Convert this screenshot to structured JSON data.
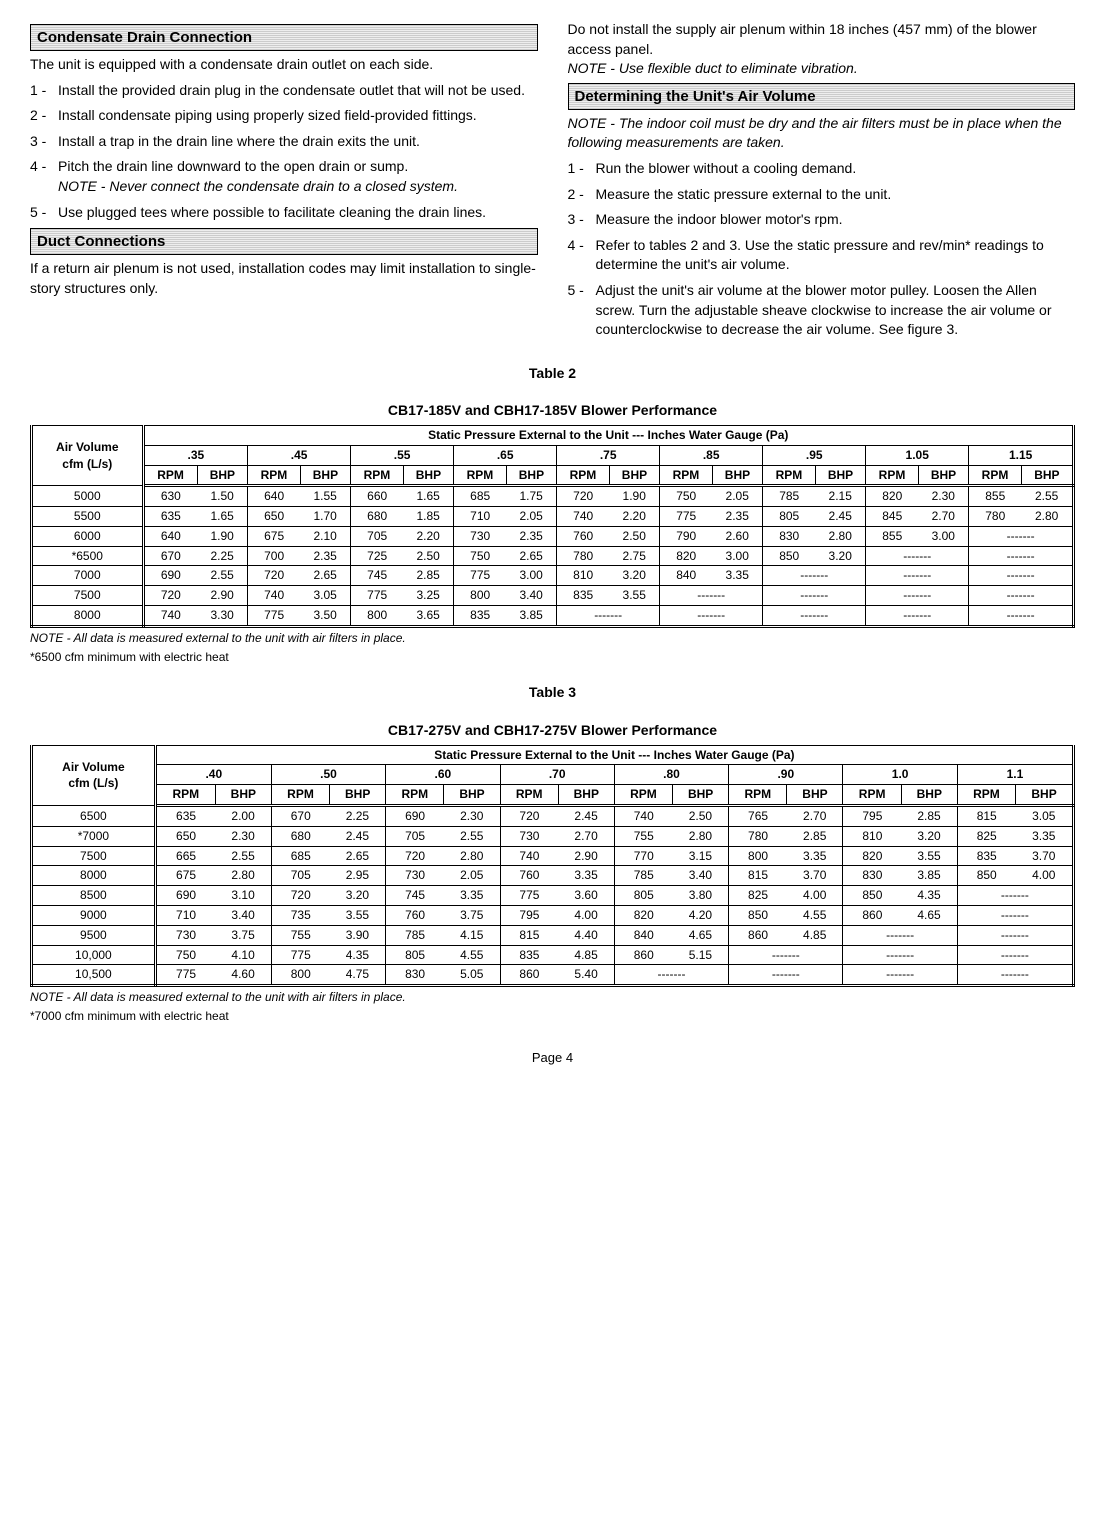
{
  "left": {
    "sec1_title": "Condensate Drain Connection",
    "sec1_intro": "The unit is equipped with a condensate drain outlet on each side.",
    "sec1_items": [
      "Install the provided drain plug in the condensate outlet that will not be used.",
      "Install condensate piping using properly sized field-provided fittings.",
      "Install a trap in the drain line where the drain exits the unit.",
      "Pitch the drain line downward to the open drain or sump.",
      "Use plugged tees where possible to facilitate cleaning the drain lines."
    ],
    "sec1_note": "NOTE - Never connect the condensate drain to a closed system.",
    "sec2_title": "Duct Connections",
    "sec2_text": "If a return air plenum is not used, installation codes may limit installation to single-story structures only."
  },
  "right": {
    "para1": "Do not install the supply air plenum within 18 inches (457 mm) of the blower access panel.",
    "note1": "NOTE - Use flexible duct to eliminate vibration.",
    "sec_title": "Determining the Unit's Air Volume",
    "note2": "NOTE - The indoor coil must be dry and the air filters must be in place when the following measurements are taken.",
    "items": [
      "Run the blower without a cooling demand.",
      "Measure the static pressure external to the unit.",
      "Measure the indoor blower motor's rpm.",
      "Refer to tables 2 and 3. Use the static pressure and rev/min* readings to determine the unit's air volume.",
      "Adjust the unit's air volume at the blower motor pulley. Loosen the Allen screw. Turn the adjustable sheave clockwise to increase the air volume or counterclockwise to decrease the air volume. See figure 3."
    ]
  },
  "table2": {
    "title1": "Table 2",
    "title2": "CB17-185V and CBH17-185V Blower Performance",
    "rowhead": "Air Volume cfm (L/s)",
    "super": "Static Pressure External to the Unit --- Inches Water Gauge (Pa)",
    "cols": [
      ".35",
      ".45",
      ".55",
      ".65",
      ".75",
      ".85",
      ".95",
      "1.05",
      "1.15"
    ],
    "sub": [
      "RPM",
      "BHP"
    ],
    "rows": [
      {
        "h": "5000",
        "c": [
          [
            "630",
            "1.50"
          ],
          [
            "640",
            "1.55"
          ],
          [
            "660",
            "1.65"
          ],
          [
            "685",
            "1.75"
          ],
          [
            "720",
            "1.90"
          ],
          [
            "750",
            "2.05"
          ],
          [
            "785",
            "2.15"
          ],
          [
            "820",
            "2.30"
          ],
          [
            "855",
            "2.55"
          ]
        ]
      },
      {
        "h": "5500",
        "c": [
          [
            "635",
            "1.65"
          ],
          [
            "650",
            "1.70"
          ],
          [
            "680",
            "1.85"
          ],
          [
            "710",
            "2.05"
          ],
          [
            "740",
            "2.20"
          ],
          [
            "775",
            "2.35"
          ],
          [
            "805",
            "2.45"
          ],
          [
            "845",
            "2.70"
          ],
          [
            "780",
            "2.80"
          ]
        ]
      },
      {
        "h": "6000",
        "c": [
          [
            "640",
            "1.90"
          ],
          [
            "675",
            "2.10"
          ],
          [
            "705",
            "2.20"
          ],
          [
            "730",
            "2.35"
          ],
          [
            "760",
            "2.50"
          ],
          [
            "790",
            "2.60"
          ],
          [
            "830",
            "2.80"
          ],
          [
            "855",
            "3.00"
          ],
          [
            "---",
            "---"
          ]
        ]
      },
      {
        "h": "*6500",
        "c": [
          [
            "670",
            "2.25"
          ],
          [
            "700",
            "2.35"
          ],
          [
            "725",
            "2.50"
          ],
          [
            "750",
            "2.65"
          ],
          [
            "780",
            "2.75"
          ],
          [
            "820",
            "3.00"
          ],
          [
            "850",
            "3.20"
          ],
          [
            "---",
            "---"
          ],
          [
            "---",
            "---"
          ]
        ]
      },
      {
        "h": "7000",
        "c": [
          [
            "690",
            "2.55"
          ],
          [
            "720",
            "2.65"
          ],
          [
            "745",
            "2.85"
          ],
          [
            "775",
            "3.00"
          ],
          [
            "810",
            "3.20"
          ],
          [
            "840",
            "3.35"
          ],
          [
            "---",
            "---"
          ],
          [
            "---",
            "---"
          ],
          [
            "---",
            "---"
          ]
        ]
      },
      {
        "h": "7500",
        "c": [
          [
            "720",
            "2.90"
          ],
          [
            "740",
            "3.05"
          ],
          [
            "775",
            "3.25"
          ],
          [
            "800",
            "3.40"
          ],
          [
            "835",
            "3.55"
          ],
          [
            "---",
            "---"
          ],
          [
            "---",
            "---"
          ],
          [
            "---",
            "---"
          ],
          [
            "---",
            "---"
          ]
        ]
      },
      {
        "h": "8000",
        "c": [
          [
            "740",
            "3.30"
          ],
          [
            "775",
            "3.50"
          ],
          [
            "800",
            "3.65"
          ],
          [
            "835",
            "3.85"
          ],
          [
            "---",
            "---"
          ],
          [
            "---",
            "---"
          ],
          [
            "---",
            "---"
          ],
          [
            "---",
            "---"
          ],
          [
            "---",
            "---"
          ]
        ]
      }
    ],
    "foot1": "NOTE - All data is measured external to the unit with air filters in place.",
    "foot2": "*6500 cfm minimum with electric heat"
  },
  "table3": {
    "title1": "Table 3",
    "title2": "CB17-275V and CBH17-275V Blower Performance",
    "rowhead": "Air Volume cfm (L/s)",
    "super": "Static Pressure External to the Unit --- Inches Water Gauge (Pa)",
    "cols": [
      ".40",
      ".50",
      ".60",
      ".70",
      ".80",
      ".90",
      "1.0",
      "1.1"
    ],
    "sub": [
      "RPM",
      "BHP"
    ],
    "rows": [
      {
        "h": "6500",
        "c": [
          [
            "635",
            "2.00"
          ],
          [
            "670",
            "2.25"
          ],
          [
            "690",
            "2.30"
          ],
          [
            "720",
            "2.45"
          ],
          [
            "740",
            "2.50"
          ],
          [
            "765",
            "2.70"
          ],
          [
            "795",
            "2.85"
          ],
          [
            "815",
            "3.05"
          ]
        ]
      },
      {
        "h": "*7000",
        "c": [
          [
            "650",
            "2.30"
          ],
          [
            "680",
            "2.45"
          ],
          [
            "705",
            "2.55"
          ],
          [
            "730",
            "2.70"
          ],
          [
            "755",
            "2.80"
          ],
          [
            "780",
            "2.85"
          ],
          [
            "810",
            "3.20"
          ],
          [
            "825",
            "3.35"
          ]
        ]
      },
      {
        "h": "7500",
        "c": [
          [
            "665",
            "2.55"
          ],
          [
            "685",
            "2.65"
          ],
          [
            "720",
            "2.80"
          ],
          [
            "740",
            "2.90"
          ],
          [
            "770",
            "3.15"
          ],
          [
            "800",
            "3.35"
          ],
          [
            "820",
            "3.55"
          ],
          [
            "835",
            "3.70"
          ]
        ]
      },
      {
        "h": "8000",
        "c": [
          [
            "675",
            "2.80"
          ],
          [
            "705",
            "2.95"
          ],
          [
            "730",
            "2.05"
          ],
          [
            "760",
            "3.35"
          ],
          [
            "785",
            "3.40"
          ],
          [
            "815",
            "3.70"
          ],
          [
            "830",
            "3.85"
          ],
          [
            "850",
            "4.00"
          ]
        ]
      },
      {
        "h": "8500",
        "c": [
          [
            "690",
            "3.10"
          ],
          [
            "720",
            "3.20"
          ],
          [
            "745",
            "3.35"
          ],
          [
            "775",
            "3.60"
          ],
          [
            "805",
            "3.80"
          ],
          [
            "825",
            "4.00"
          ],
          [
            "850",
            "4.35"
          ],
          [
            "---",
            "---"
          ]
        ]
      },
      {
        "h": "9000",
        "c": [
          [
            "710",
            "3.40"
          ],
          [
            "735",
            "3.55"
          ],
          [
            "760",
            "3.75"
          ],
          [
            "795",
            "4.00"
          ],
          [
            "820",
            "4.20"
          ],
          [
            "850",
            "4.55"
          ],
          [
            "860",
            "4.65"
          ],
          [
            "---",
            "---"
          ]
        ]
      },
      {
        "h": "9500",
        "c": [
          [
            "730",
            "3.75"
          ],
          [
            "755",
            "3.90"
          ],
          [
            "785",
            "4.15"
          ],
          [
            "815",
            "4.40"
          ],
          [
            "840",
            "4.65"
          ],
          [
            "860",
            "4.85"
          ],
          [
            "---",
            "---"
          ],
          [
            "---",
            "---"
          ]
        ]
      },
      {
        "h": "10,000",
        "c": [
          [
            "750",
            "4.10"
          ],
          [
            "775",
            "4.35"
          ],
          [
            "805",
            "4.55"
          ],
          [
            "835",
            "4.85"
          ],
          [
            "860",
            "5.15"
          ],
          [
            "---",
            "---"
          ],
          [
            "---",
            "---"
          ],
          [
            "---",
            "---"
          ]
        ]
      },
      {
        "h": "10,500",
        "c": [
          [
            "775",
            "4.60"
          ],
          [
            "800",
            "4.75"
          ],
          [
            "830",
            "5.05"
          ],
          [
            "860",
            "5.40"
          ],
          [
            "---",
            "---"
          ],
          [
            "---",
            "---"
          ],
          [
            "---",
            "---"
          ],
          [
            "---",
            "---"
          ]
        ]
      }
    ],
    "foot1": "NOTE - All data is measured external to the unit with air filters in place.",
    "foot2": "*7000 cfm minimum with electric heat"
  },
  "page": "Page 4",
  "dash": "-------"
}
